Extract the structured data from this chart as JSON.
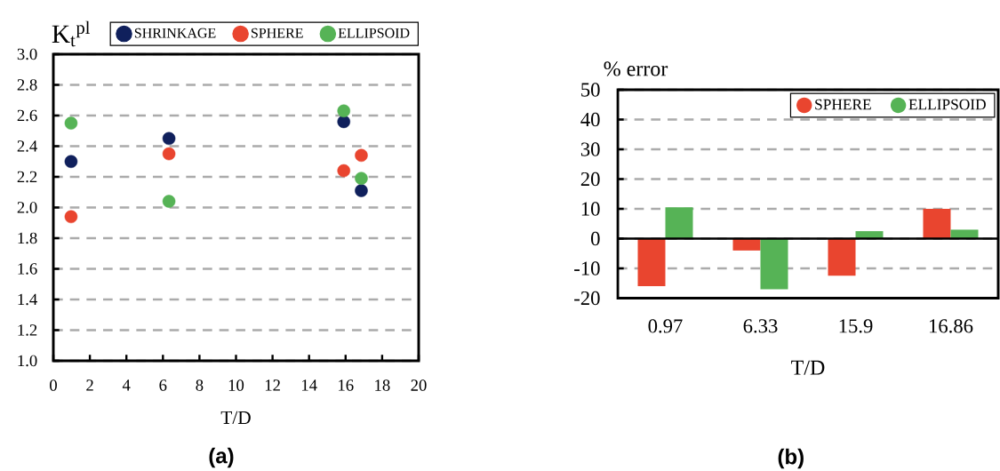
{
  "chart_data": [
    {
      "type": "scatter",
      "ylabel": "K$_{t}$$^{pl}$",
      "xlabel": "T/D",
      "annotations": [
        "(a)"
      ],
      "x": [
        0.97,
        6.33,
        15.9,
        16.86
      ],
      "xlim": [
        0,
        20
      ],
      "xticks": [
        0,
        2,
        4,
        6,
        8,
        10,
        12,
        14,
        16,
        18,
        20
      ],
      "ylim": [
        1,
        3
      ],
      "yticks": [
        {
          "value": 1,
          "label": "1.0"
        },
        1.2,
        1.4,
        1.6,
        1.8,
        {
          "value": 2,
          "label": "2.0"
        },
        2.2,
        2.4,
        2.6,
        2.8,
        {
          "value": 3,
          "label": "3.0"
        }
      ],
      "grid": "y",
      "legend": "top",
      "marker": "circle",
      "series": [
        {
          "name": "SHRINKAGE",
          "color": "#10205c",
          "values": [
            2.3,
            2.45,
            2.56,
            2.11
          ]
        },
        {
          "name": "SPHERE",
          "color": "#e9452f",
          "values": [
            1.94,
            2.35,
            2.24,
            2.34
          ]
        },
        {
          "name": "ELLIPSOID",
          "color": "#56b356",
          "values": [
            2.55,
            2.04,
            2.63,
            2.19
          ]
        }
      ]
    },
    {
      "type": "bar",
      "ylabel": "% error",
      "xlabel": "T/D",
      "annotations": [
        "(b)"
      ],
      "categories": [
        "0.97",
        "6.33",
        "15.9",
        "16.86"
      ],
      "ylim": [
        -20,
        50
      ],
      "yticks": [
        -20,
        -10,
        0,
        10,
        20,
        30,
        40,
        50
      ],
      "grid": "y",
      "legend": "top right",
      "series": [
        {
          "name": "SPHERE",
          "color": "#e9452f",
          "values": [
            -16,
            -4,
            -12.5,
            10
          ]
        },
        {
          "name": "ELLIPSOID",
          "color": "#56b356",
          "values": [
            10.5,
            -17,
            2.5,
            3
          ]
        }
      ]
    }
  ]
}
